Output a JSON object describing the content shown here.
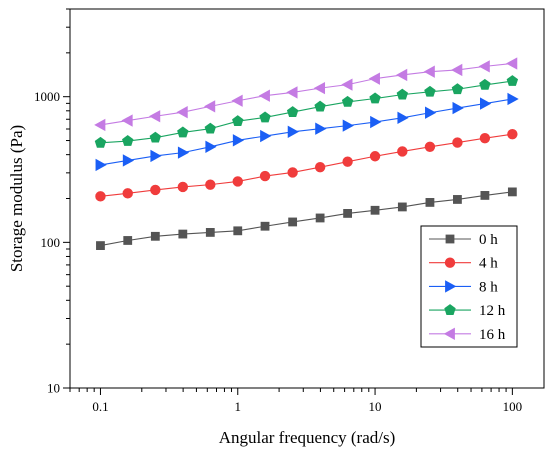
{
  "chart_data": {
    "type": "line",
    "title": "",
    "xlabel": "Angular frequency (rad/s)",
    "ylabel": "Storage modulus (Pa)",
    "x_scale": "log",
    "y_scale": "log",
    "xlim": [
      0.06,
      170
    ],
    "ylim": [
      10,
      4000
    ],
    "x_ticks": [
      0.1,
      1,
      10,
      100
    ],
    "x_tick_labels": [
      "0.1",
      "1",
      "10",
      "100"
    ],
    "y_ticks": [
      10,
      100,
      1000
    ],
    "y_tick_labels": [
      "10",
      "100",
      "1000"
    ],
    "grid": false,
    "legend_position": "lower-right",
    "x": [
      0.1,
      0.158,
      0.251,
      0.398,
      0.631,
      1,
      1.58,
      2.51,
      3.98,
      6.31,
      10,
      15.8,
      25.1,
      39.8,
      63.1,
      100
    ],
    "series": [
      {
        "name": "0 h",
        "color": "#545454",
        "marker": "square",
        "values": [
          95,
          103,
          110,
          114,
          117,
          120,
          129,
          138,
          147,
          158,
          166,
          175,
          188,
          197,
          210,
          222
        ]
      },
      {
        "name": "4 h",
        "color": "#f03c3c",
        "marker": "circle",
        "values": [
          207,
          217,
          229,
          240,
          249,
          262,
          285,
          302,
          328,
          358,
          390,
          421,
          453,
          484,
          519,
          553
        ]
      },
      {
        "name": "8 h",
        "color": "#1b5ff5",
        "marker": "triangle-right",
        "values": [
          340,
          365,
          392,
          413,
          453,
          502,
          537,
          574,
          603,
          633,
          670,
          716,
          776,
          835,
          897,
          965
        ]
      },
      {
        "name": "12 h",
        "color": "#1aa561",
        "marker": "pentagon",
        "values": [
          482,
          496,
          523,
          568,
          603,
          679,
          720,
          784,
          854,
          921,
          972,
          1033,
          1080,
          1125,
          1205,
          1280
        ]
      },
      {
        "name": "16 h",
        "color": "#c47be3",
        "marker": "triangle-left",
        "values": [
          640,
          686,
          734,
          783,
          858,
          938,
          1016,
          1070,
          1145,
          1210,
          1330,
          1410,
          1485,
          1526,
          1615,
          1690
        ]
      }
    ]
  }
}
